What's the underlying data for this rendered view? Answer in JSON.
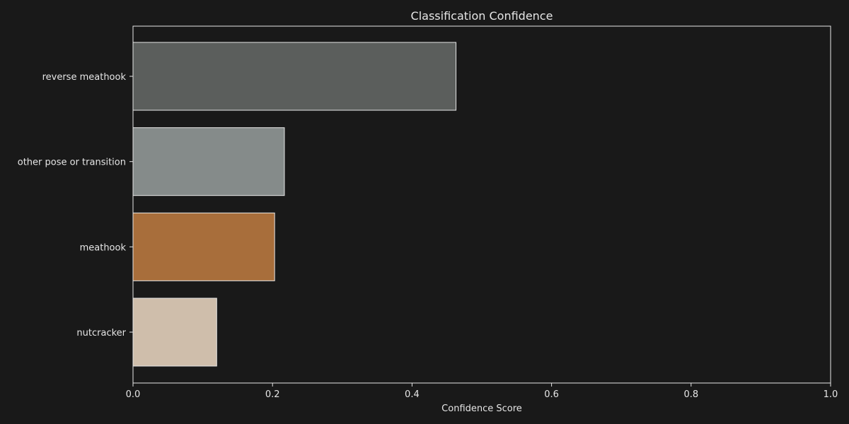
{
  "chart_data": {
    "type": "bar",
    "orientation": "horizontal",
    "title": "Classification Confidence",
    "xlabel": "Confidence Score",
    "ylabel": "",
    "xlim": [
      0,
      1
    ],
    "xticks": [
      "0.0",
      "0.2",
      "0.4",
      "0.6",
      "0.8",
      "1.0"
    ],
    "grid": false,
    "legend": "none",
    "categories": [
      "reverse meathook",
      "other pose or transition",
      "meathook",
      "nutcracker"
    ],
    "values": [
      0.463,
      0.217,
      0.203,
      0.12
    ],
    "colors": [
      "#5b5e5c",
      "#858b8a",
      "#a86e3b",
      "#cfbeab"
    ],
    "background": "#191919",
    "text_color": "#e6e6e6",
    "axis_color": "#e6e6e6"
  }
}
